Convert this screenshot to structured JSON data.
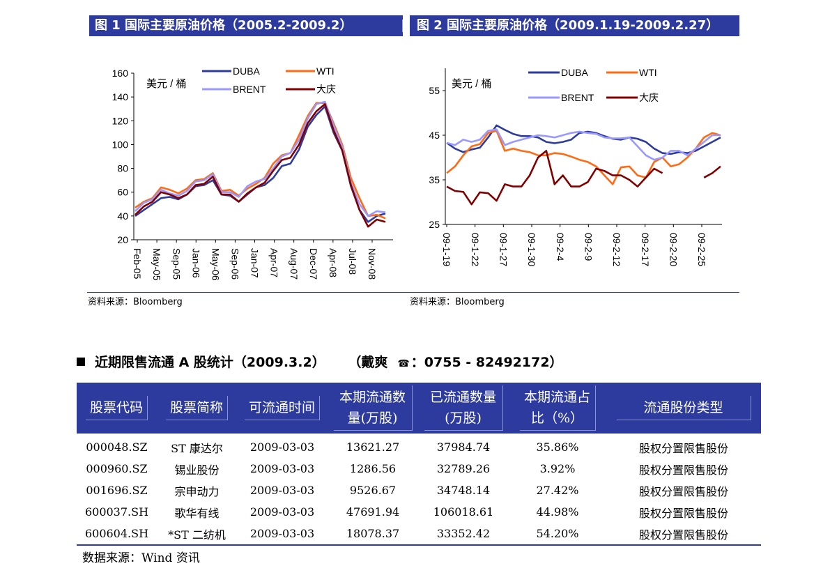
{
  "header": {
    "fig1_title": "图 1  国际主要原油价格（2005.2-2009.2）",
    "fig2_title": "图 2  国际主要原油价格（2009.1.19-2009.2.27）"
  },
  "sources": {
    "fig1": "资料来源：Bloomberg",
    "fig2": "资料来源：Bloomberg"
  },
  "chart_data": [
    {
      "type": "line",
      "unit_label": "美元 / 桶",
      "ylim": [
        20,
        160
      ],
      "yticks": [
        20,
        40,
        60,
        80,
        100,
        120,
        140,
        160
      ],
      "x_tick_labels": [
        "Feb-05",
        "May-05",
        "Sep-05",
        "Jan-06",
        "May-06",
        "Sep-06",
        "Jan-07",
        "Apr-07",
        "Aug-07",
        "Dec-07",
        "Apr-08",
        "Jul-08",
        "Nov-08"
      ],
      "x": [
        "Feb-05",
        "Apr-05",
        "Jun-05",
        "Aug-05",
        "Oct-05",
        "Dec-05",
        "Feb-06",
        "Apr-06",
        "Jun-06",
        "Aug-06",
        "Oct-06",
        "Dec-06",
        "Feb-07",
        "Apr-07",
        "Jun-07",
        "Aug-07",
        "Oct-07",
        "Dec-07",
        "Feb-08",
        "Apr-08",
        "May-08",
        "Jun-08",
        "Jul-08",
        "Aug-08",
        "Sep-08",
        "Oct-08",
        "Nov-08",
        "Dec-08",
        "Jan-09",
        "Feb-09"
      ],
      "series": [
        {
          "name": "DUBA",
          "color": "#2e3b9e",
          "values": [
            40,
            45,
            50,
            55,
            56,
            54,
            58,
            65,
            66,
            70,
            58,
            57,
            52,
            58,
            64,
            66,
            72,
            82,
            84,
            96,
            115,
            125,
            132,
            110,
            95,
            65,
            45,
            35,
            40,
            42
          ]
        },
        {
          "name": "WTI",
          "color": "#ff6a13",
          "values": [
            47,
            52,
            55,
            64,
            62,
            59,
            63,
            70,
            71,
            76,
            61,
            62,
            57,
            63,
            67,
            72,
            84,
            91,
            93,
            108,
            124,
            135,
            135,
            118,
            100,
            72,
            55,
            40,
            41,
            38
          ]
        },
        {
          "name": "BRENT",
          "color": "#9999ff",
          "values": [
            44,
            51,
            54,
            62,
            59,
            57,
            61,
            69,
            70,
            75,
            60,
            60,
            56,
            65,
            69,
            71,
            80,
            90,
            93,
            104,
            122,
            134,
            136,
            116,
            98,
            68,
            50,
            40,
            44,
            43
          ]
        },
        {
          "name": "大庆",
          "color": "#800000",
          "values": [
            41,
            48,
            52,
            60,
            58,
            55,
            58,
            66,
            67,
            73,
            58,
            58,
            52,
            59,
            64,
            68,
            78,
            87,
            89,
            100,
            118,
            128,
            134,
            112,
            95,
            66,
            45,
            31,
            37,
            35
          ]
        }
      ]
    },
    {
      "type": "line",
      "unit_label": "美元 / 桶",
      "ylim": [
        25,
        60
      ],
      "yticks": [
        25,
        35,
        45,
        55
      ],
      "x_tick_labels": [
        "09-1-19",
        "09-1-22",
        "09-1-27",
        "09-1-30",
        "09-2-4",
        "09-2-9",
        "09-2-12",
        "09-2-17",
        "09-2-20",
        "09-2-25"
      ],
      "series": [
        {
          "name": "DUBA",
          "color": "#2e3b9e",
          "values": [
            43.3,
            42,
            41.2,
            41.8,
            42.2,
            44.5,
            47.2,
            46.2,
            45.3,
            44.8,
            44.8,
            44.5,
            43.5,
            43.2,
            43.5,
            44,
            45.5,
            45.8,
            45.5,
            44.8,
            44.2,
            44,
            44.5,
            44.2,
            43.5,
            42,
            41,
            40.8,
            41.2,
            41,
            41.5,
            42.5,
            43.5,
            44.5
          ]
        },
        {
          "name": "WTI",
          "color": "#ff6a13",
          "values": [
            36.5,
            38,
            40.5,
            42.5,
            43,
            45.5,
            46,
            41.5,
            42,
            41.5,
            41.2,
            40.5,
            40.5,
            41,
            40.8,
            40.2,
            39.5,
            39,
            38,
            36,
            34,
            37.8,
            38,
            36,
            35.5,
            39,
            40,
            38,
            38.5,
            40,
            42,
            44.5,
            45.5,
            45
          ]
        },
        {
          "name": "BRENT",
          "color": "#9999ff",
          "values": [
            43.3,
            42.8,
            44,
            43.5,
            44,
            46,
            46.3,
            42.8,
            43.5,
            44,
            44.5,
            45,
            44.8,
            44.5,
            45,
            45.5,
            45.8,
            45.5,
            45.3,
            44.5,
            44.3,
            44.3,
            44.5,
            42.5,
            40.5,
            39.5,
            40,
            41.5,
            41.5,
            40.5,
            42,
            43.5,
            45,
            45
          ]
        },
        {
          "name": "大庆",
          "color": "#800000",
          "values": [
            33.5,
            32.5,
            32.3,
            29.5,
            32.2,
            32,
            30.3,
            34,
            33.5,
            33.5,
            36,
            40,
            41.5,
            34,
            36,
            33.5,
            33.5,
            34.5,
            37.5,
            37,
            36,
            36,
            35,
            33.5,
            35.5,
            37.5,
            36.5,
            null,
            null,
            null,
            null,
            35.5,
            36.5,
            38
          ]
        }
      ]
    }
  ],
  "stats": {
    "title": "近期限售流通 A 股统计（2009.3.2）",
    "contact_prefix": "（戴爽",
    "phone_icon": "phone-icon",
    "contact_phone": "：0755 - 82492172）",
    "columns": [
      "股票代码",
      "股票简称",
      "可流通时间",
      "本期流通数量(万股)",
      "已流通数量(万股)",
      "本期流通占比（%）",
      "流通股份类型"
    ],
    "rows": [
      [
        "000048.SZ",
        "ST 康达尔",
        "2009-03-03",
        "13621.27",
        "37984.74",
        "35.86%",
        "股权分置限售股份"
      ],
      [
        "000960.SZ",
        "锡业股份",
        "2009-03-03",
        "1286.56",
        "32789.26",
        "3.92%",
        "股权分置限售股份"
      ],
      [
        "001696.SZ",
        "宗申动力",
        "2009-03-03",
        "9526.67",
        "34748.14",
        "27.42%",
        "股权分置限售股份"
      ],
      [
        "600037.SH",
        "歌华有线",
        "2009-03-03",
        "47691.94",
        "106018.61",
        "44.98%",
        "股权分置限售股份"
      ],
      [
        "600604.SH",
        "*ST 二纺机",
        "2009-03-03",
        "18078.37",
        "33352.42",
        "54.20%",
        "股权分置限售股份"
      ]
    ],
    "source": "数据来源：Wind 资讯"
  }
}
